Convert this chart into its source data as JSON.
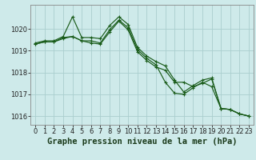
{
  "title": "Graphe pression niveau de la mer (hPa)",
  "bg_color": "#ceeaea",
  "grid_color": "#aacece",
  "line_color": "#1a5c1a",
  "line1": {
    "x": [
      0,
      1,
      2,
      3,
      4,
      5,
      6,
      7,
      8,
      9,
      10,
      11,
      12,
      13,
      14,
      15,
      16,
      17,
      18,
      19,
      20,
      21,
      22,
      23
    ],
    "y": [
      1019.35,
      1019.45,
      1019.45,
      1019.65,
      1020.55,
      1019.6,
      1019.6,
      1019.55,
      1020.15,
      1020.55,
      1020.2,
      1019.15,
      1018.75,
      1018.5,
      1018.3,
      1017.65,
      1017.1,
      1017.4,
      1017.65,
      1017.75,
      1016.35,
      1016.3,
      1016.1,
      1016.0
    ]
  },
  "line2": {
    "x": [
      0,
      1,
      2,
      3,
      4,
      5,
      6,
      7,
      8,
      9,
      10,
      11,
      12,
      13,
      14,
      15,
      16,
      17,
      18,
      19,
      20,
      21,
      22,
      23
    ],
    "y": [
      1019.3,
      1019.4,
      1019.4,
      1019.55,
      1019.65,
      1019.45,
      1019.35,
      1019.3,
      1019.85,
      1020.35,
      1019.95,
      1018.95,
      1018.55,
      1018.25,
      1018.1,
      1017.55,
      1017.55,
      1017.35,
      1017.5,
      1017.7,
      1016.35,
      1016.3,
      1016.1,
      1016.0
    ]
  },
  "line3": {
    "x": [
      0,
      1,
      2,
      3,
      4,
      5,
      6,
      7,
      8,
      9,
      10,
      11,
      12,
      13,
      14,
      15,
      16,
      17,
      18,
      19,
      20,
      21,
      22,
      23
    ],
    "y": [
      1019.3,
      1019.4,
      1019.4,
      1019.6,
      1019.65,
      1019.45,
      1019.45,
      1019.35,
      1019.95,
      1020.4,
      1020.05,
      1019.05,
      1018.65,
      1018.35,
      1017.55,
      1017.05,
      1017.0,
      1017.3,
      1017.55,
      1017.35,
      1016.35,
      1016.3,
      1016.1,
      1016.0
    ]
  },
  "ylim": [
    1015.6,
    1021.1
  ],
  "yticks": [
    1016,
    1017,
    1018,
    1019,
    1020
  ],
  "xticks": [
    0,
    1,
    2,
    3,
    4,
    5,
    6,
    7,
    8,
    9,
    10,
    11,
    12,
    13,
    14,
    15,
    16,
    17,
    18,
    19,
    20,
    21,
    22,
    23
  ],
  "title_fontsize": 7.5,
  "tick_fontsize": 6.0,
  "figsize": [
    3.2,
    2.0
  ],
  "dpi": 100
}
